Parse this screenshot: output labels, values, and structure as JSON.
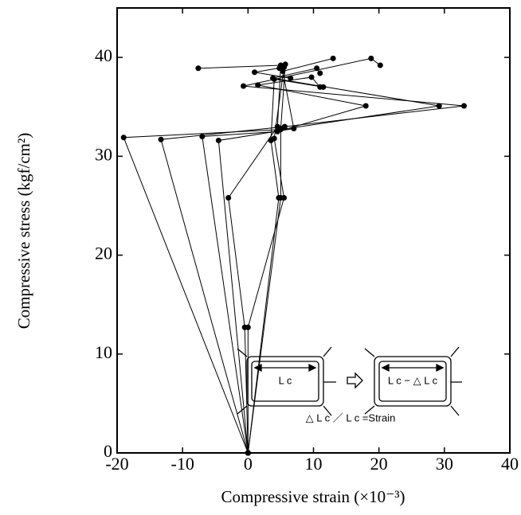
{
  "chart_data": {
    "type": "line",
    "xlabel": "Compressive strain (×10⁻³)",
    "ylabel": "Compressive stress (kgf/cm²)",
    "xlim": [
      -20,
      40
    ],
    "xticks": [
      -20,
      -10,
      0,
      10,
      20,
      30,
      40
    ],
    "ylim": [
      0,
      45
    ],
    "yticks": [
      0,
      10,
      20,
      30,
      40
    ],
    "color": "#000000",
    "series": [
      {
        "x": [
          0,
          -19,
          5,
          29.2,
          3.8,
          10.5,
          11
        ],
        "values": [
          0,
          31.9,
          32.7,
          35.1,
          37.9,
          38.9,
          38.4
        ]
      },
      {
        "x": [
          0,
          -13.3,
          5.6,
          33,
          -0.7,
          18.8,
          20.2
        ],
        "values": [
          0,
          31.7,
          33,
          35.1,
          37.1,
          39.9,
          39.2
        ]
      },
      {
        "x": [
          0,
          -7,
          4.5,
          18,
          1.5,
          9.7,
          11
        ],
        "values": [
          0,
          32,
          32.5,
          35.1,
          37.2,
          38,
          37
        ]
      },
      {
        "x": [
          0,
          -4.5,
          7,
          5.3,
          13
        ],
        "values": [
          0,
          31.6,
          32.8,
          38.6,
          39.9
        ]
      },
      {
        "x": [
          0,
          -0.5,
          -3,
          4.5,
          5,
          -7.6
        ],
        "values": [
          0,
          12.7,
          25.8,
          33,
          39.2,
          38.9
        ]
      },
      {
        "x": [
          0,
          0,
          5.5,
          4,
          5.5,
          1,
          6.5
        ],
        "values": [
          0,
          12.7,
          25.8,
          31.8,
          39,
          38.5,
          37.9
        ]
      },
      {
        "x": [
          0,
          4.7,
          3.5,
          4,
          11.5
        ],
        "values": [
          0,
          25.8,
          31.6,
          37.8,
          37
        ]
      },
      {
        "x": [
          0,
          5,
          5,
          5.7,
          4.8
        ],
        "values": [
          0,
          25.8,
          32.8,
          39.3,
          38.9
        ]
      }
    ],
    "annotations": [
      "L c",
      "L c − △ L c",
      "△ L c ／ L c =Strain"
    ]
  }
}
